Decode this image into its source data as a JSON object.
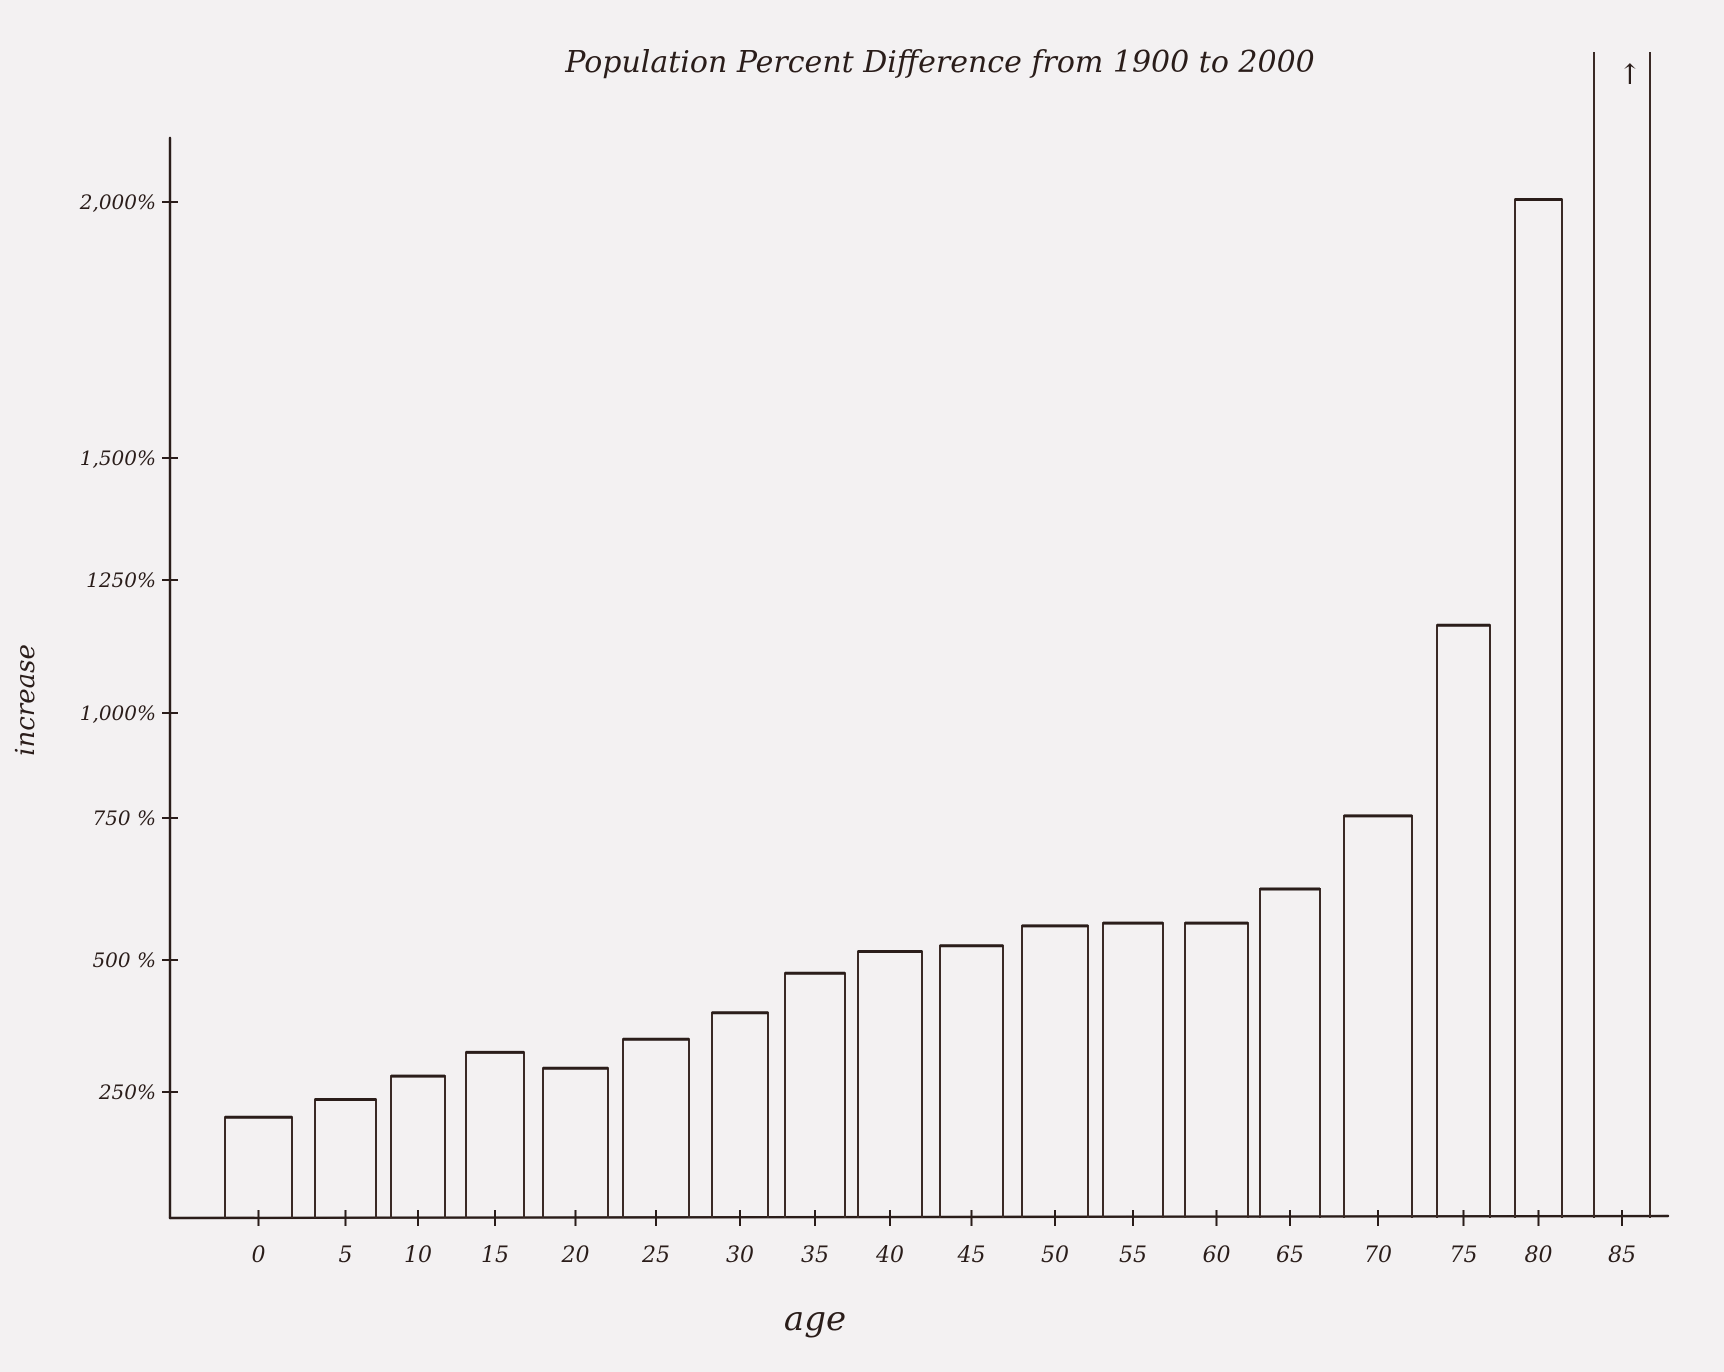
{
  "chart_data": {
    "type": "bar",
    "title": "Population Percent Difference from 1900 to 2000",
    "xlabel": "age",
    "ylabel": "increase",
    "categories": [
      "0",
      "5",
      "10",
      "15",
      "20",
      "25",
      "30",
      "35",
      "40",
      "45",
      "50",
      "55",
      "60",
      "65",
      "70",
      "75",
      "80",
      "85"
    ],
    "series": [
      {
        "values": [
          200,
          235,
          280,
          325,
          295,
          350,
          400,
          475,
          515,
          525,
          560,
          565,
          565,
          625,
          755,
          1165,
          2005,
          2300
        ]
      }
    ],
    "y_ticks": [
      {
        "value": 250,
        "label": "250%"
      },
      {
        "value": 500,
        "label": "500 %"
      },
      {
        "value": 750,
        "label": "750 %"
      },
      {
        "value": 1000,
        "label": "1,000%"
      },
      {
        "value": 1250,
        "label": "1250%"
      },
      {
        "value": 1500,
        "label": "1,500%"
      },
      {
        "value": 2000,
        "label": "2,000%"
      }
    ],
    "ylim": [
      0,
      2300
    ],
    "grid": false,
    "last_bar_marker": "↑",
    "colors": {
      "ink": "#2a1d1a",
      "paper": "#f3f1f2"
    }
  }
}
